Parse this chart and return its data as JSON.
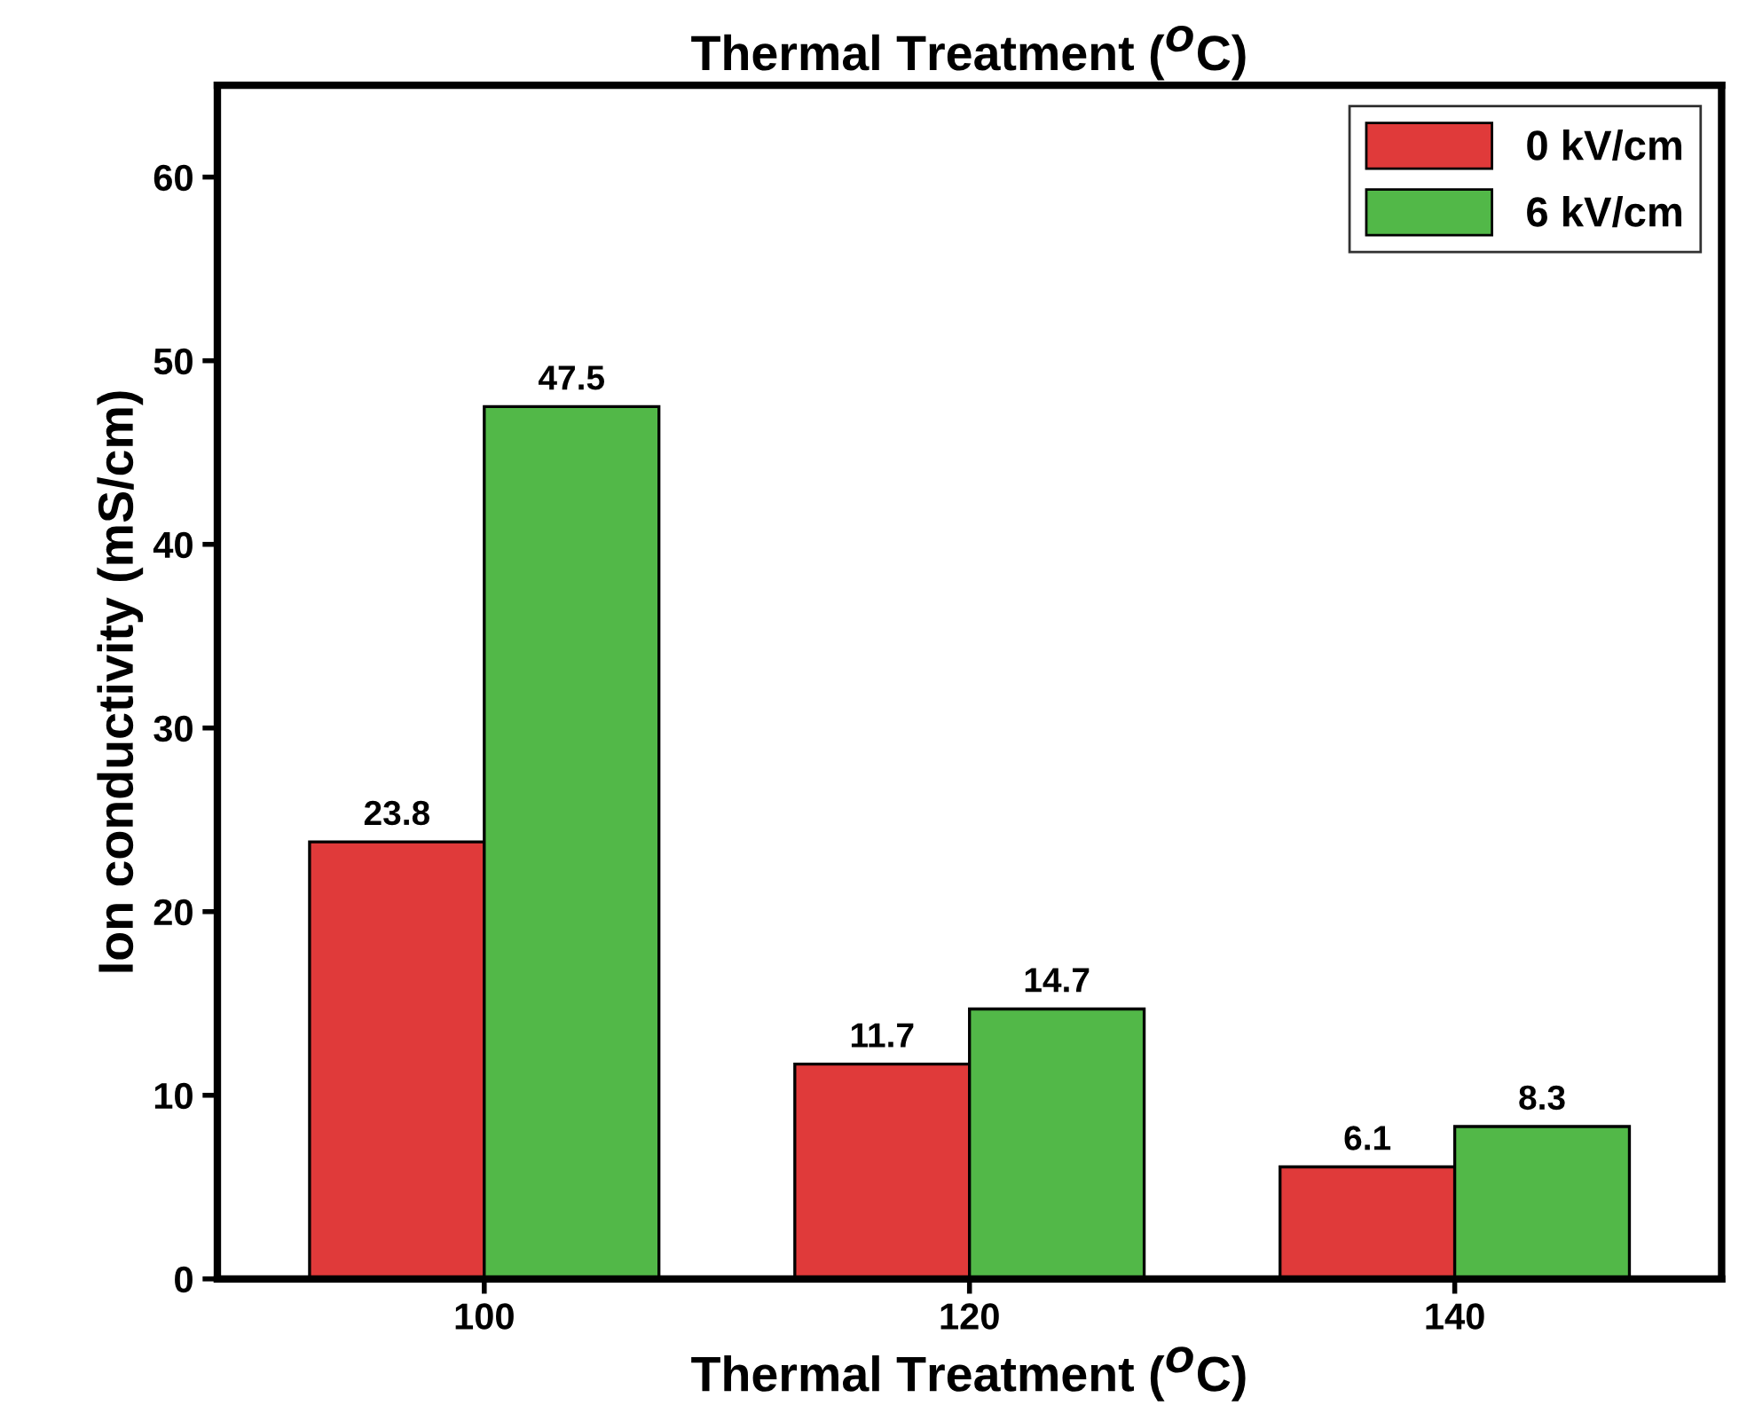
{
  "chart_data": {
    "type": "bar",
    "title": "Thermal Treatment ($^{O}$C)",
    "xlabel": "Thermal Treatment ($^{O}$C)",
    "ylabel": "Ion conductivity (mS/cm)",
    "categories": [
      "100",
      "120",
      "140"
    ],
    "series": [
      {
        "name": "0 kV/cm",
        "color": "#e03a3a",
        "values": [
          23.8,
          11.7,
          6.1
        ]
      },
      {
        "name": "6 kV/cm",
        "color": "#52b848",
        "values": [
          47.5,
          14.7,
          8.3
        ]
      }
    ],
    "ylim": [
      0,
      65
    ],
    "yticks": [
      0,
      10,
      20,
      30,
      40,
      50,
      60
    ],
    "data_labels": true,
    "legend": "top right",
    "grid": false
  }
}
